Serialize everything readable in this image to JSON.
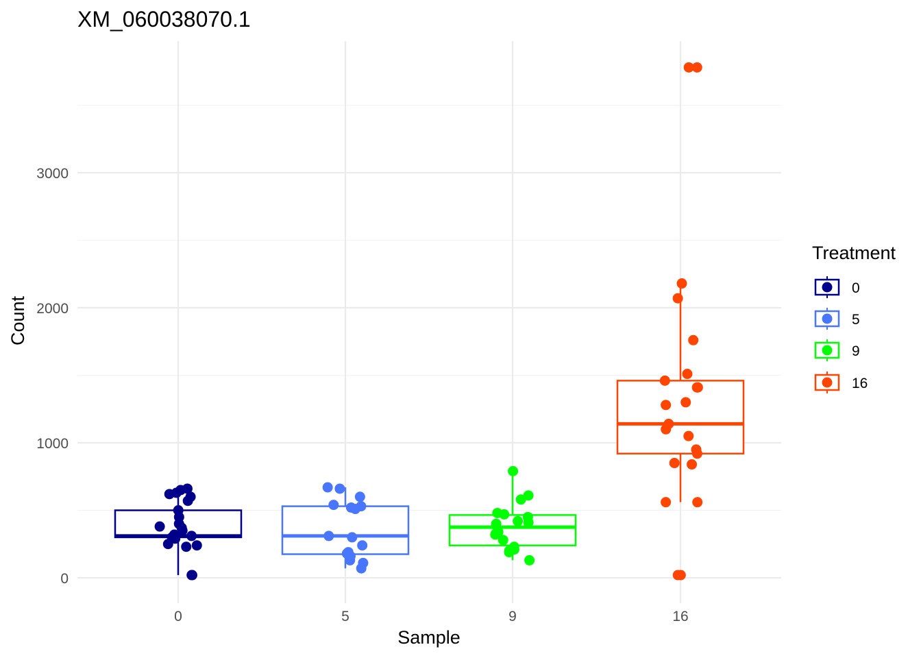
{
  "chart_data": {
    "type": "box",
    "title": "XM_060038070.1",
    "xlabel": "Sample",
    "ylabel": "Count",
    "categories": [
      "0",
      "5",
      "9",
      "16"
    ],
    "x_tick_labels": [
      "0",
      "5",
      "9",
      "16"
    ],
    "y_ticks": [
      0,
      1000,
      2000,
      3000
    ],
    "y_tick_labels": [
      "0",
      "1000",
      "2000",
      "3000"
    ],
    "ylim": [
      -190,
      3990
    ],
    "grid": true,
    "legend": {
      "title": "Treatment",
      "position": "right",
      "entries": [
        "0",
        "5",
        "9",
        "16"
      ]
    },
    "series": [
      {
        "name": "0",
        "color": "#00008B",
        "box": {
          "q1": 300,
          "median": 310,
          "q3": 500,
          "whisker_low": 20,
          "whisker_high": 670
        },
        "points": [
          660,
          650,
          630,
          620,
          600,
          570,
          500,
          450,
          400,
          380,
          370,
          350,
          320,
          310,
          300,
          290,
          250,
          240,
          230,
          20,
          20
        ]
      },
      {
        "name": "5",
        "color": "#4876FF",
        "box": {
          "q1": 175,
          "median": 310,
          "q3": 530,
          "whisker_low": 70,
          "whisker_high": 670
        },
        "points": [
          670,
          660,
          600,
          540,
          530,
          520,
          510,
          310,
          300,
          240,
          190,
          180,
          160,
          130,
          110,
          70
        ]
      },
      {
        "name": "9",
        "color": "#00FF00",
        "box": {
          "q1": 240,
          "median": 375,
          "q3": 465,
          "whisker_low": 130,
          "whisker_high": 790
        },
        "points": [
          790,
          610,
          580,
          480,
          470,
          450,
          420,
          410,
          400,
          340,
          330,
          320,
          280,
          230,
          210,
          200,
          190,
          130
        ]
      },
      {
        "name": "16",
        "color": "#FF4500",
        "box": {
          "q1": 920,
          "median": 1140,
          "q3": 1460,
          "whisker_low": 560,
          "whisker_high": 2170
        },
        "points": [
          3780,
          3780,
          2180,
          2070,
          1760,
          1510,
          1460,
          1410,
          1410,
          1300,
          1280,
          1140,
          1100,
          1050,
          950,
          920,
          850,
          840,
          560,
          560,
          20,
          20
        ]
      }
    ]
  }
}
